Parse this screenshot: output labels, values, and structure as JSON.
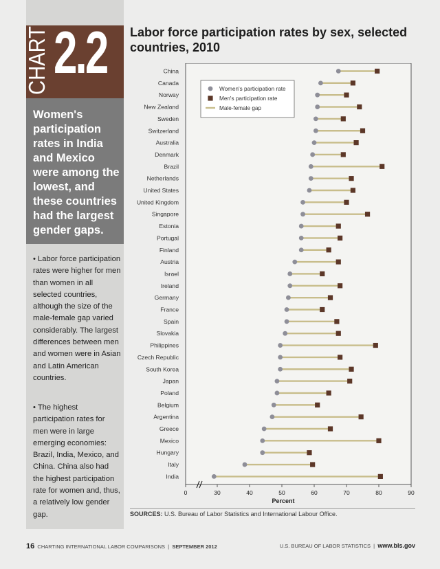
{
  "chart_label": "CHART",
  "chart_number": "2.2",
  "highlight": "Women's participation rates in India and Mexico were among the lowest, and these countries had the largest gender gaps.",
  "bullets": [
    "• Labor force participation rates were higher for men than women in all selected countries, although the size of the male-female gap varied considerably. The largest differences between men and women were in Asian and Latin American countries.",
    "• The highest participation rates for men were in large emerging economies: Brazil, India, Mexico, and China. China also had the highest participation rate for women and, thus, a relatively low gender gap."
  ],
  "sources_label": "SOURCES:",
  "sources_text": "U.S. Bureau of Labor Statistics and International Labour Office.",
  "footer": {
    "page": "16",
    "publication": "CHARTING INTERNATIONAL LABOR COMPARISONS",
    "date": "SEPTEMBER 2012",
    "agency": "U.S. BUREAU OF LABOR STATISTICS",
    "url": "www.bls.gov"
  },
  "colors": {
    "women": "#8e8e98",
    "men": "#5c3728",
    "gap": "#c8bd8b",
    "brand": "#6a4030"
  },
  "chart_data": {
    "type": "dot",
    "title": "Labor force participation rates by sex, selected countries, 2010",
    "xlabel": "Percent",
    "xlim": [
      0,
      90
    ],
    "xticks": [
      0,
      30,
      40,
      50,
      60,
      70,
      80,
      90
    ],
    "axis_break": true,
    "legend": [
      "Women's participation rate",
      "Men's participation rate",
      "Male-female gap"
    ],
    "legend_position": "top-left",
    "categories": [
      "China",
      "Canada",
      "Norway",
      "New Zealand",
      "Sweden",
      "Switzerland",
      "Australia",
      "Denmark",
      "Brazil",
      "Netherlands",
      "United States",
      "United Kingdom",
      "Singapore",
      "Estonia",
      "Portugal",
      "Finland",
      "Austria",
      "Israel",
      "Ireland",
      "Germany",
      "France",
      "Spain",
      "Slovakia",
      "Philippines",
      "Czech Republic",
      "South Korea",
      "Japan",
      "Poland",
      "Belgium",
      "Argentina",
      "Greece",
      "Mexico",
      "Hungary",
      "Italy",
      "India"
    ],
    "series": [
      {
        "name": "Women's participation rate",
        "values": [
          67.5,
          62,
          61,
          61,
          60.5,
          60.5,
          60,
          59.5,
          59,
          59,
          58.5,
          56.5,
          56.5,
          56,
          56,
          56,
          54,
          52.5,
          52.5,
          52,
          51.5,
          51.5,
          51,
          49.5,
          49.5,
          49.5,
          48.5,
          48.5,
          47.5,
          47,
          44.5,
          44,
          44,
          38.5,
          29
        ]
      },
      {
        "name": "Men's participation rate",
        "values": [
          79.5,
          72,
          70,
          74,
          69,
          75,
          73,
          69,
          81,
          71.5,
          72,
          70,
          76.5,
          67.5,
          68,
          64.5,
          67.5,
          62.5,
          68,
          65,
          62.5,
          67,
          67.5,
          79,
          68,
          71.5,
          71,
          64.5,
          61,
          74.5,
          65,
          80,
          58.5,
          59.5,
          80.5
        ]
      }
    ]
  }
}
